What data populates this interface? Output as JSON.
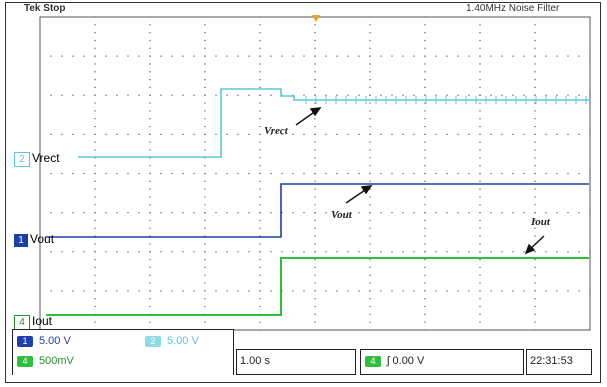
{
  "header": {
    "run_status": "Tek Stop",
    "acquisition_info": "1.40MHz  Noise Filter"
  },
  "channels": [
    {
      "id": "2",
      "label": "Vrect",
      "color": "#5cc8d8",
      "scale": "5.00 V"
    },
    {
      "id": "1",
      "label": "Vout",
      "color": "#1f3fa8",
      "scale": "5.00 V"
    },
    {
      "id": "4",
      "label": "Iout",
      "color": "#2fbf3a",
      "scale": "500mV"
    }
  ],
  "annotations": {
    "vrect": "Vrect",
    "vout": "Vout",
    "iout": "Iout"
  },
  "readouts": {
    "timebase": "1.00 s",
    "trigger_channel": "4",
    "trigger_symbol": "ʃ",
    "trigger_level": "0.00 V",
    "clock": "22:31:53"
  },
  "colors": {
    "grid": "#555555",
    "trigger_marker": "#f0a030"
  }
}
